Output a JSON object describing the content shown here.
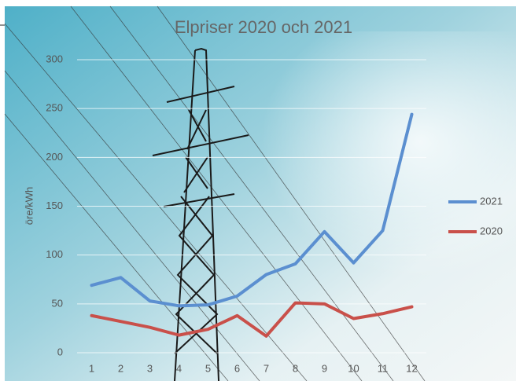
{
  "chart_data": {
    "type": "line",
    "title": "Elpriser 2020 och 2021",
    "y_label": "öre/kWh",
    "categories": [
      "1",
      "2",
      "3",
      "4",
      "5",
      "6",
      "7",
      "8",
      "9",
      "10",
      "11",
      "12"
    ],
    "series": [
      {
        "name": "2021",
        "color": "#5b8fd0",
        "values": [
          69,
          77,
          53,
          48,
          49,
          58,
          80,
          91,
          124,
          92,
          125,
          244
        ]
      },
      {
        "name": "2020",
        "color": "#c9504a",
        "values": [
          38,
          32,
          26,
          18,
          24,
          38,
          17,
          51,
          50,
          35,
          40,
          47
        ]
      }
    ],
    "ylim": [
      0,
      300
    ],
    "yticks": [
      0,
      50,
      100,
      150,
      200,
      250,
      300
    ],
    "grid": true,
    "legend": "right"
  }
}
